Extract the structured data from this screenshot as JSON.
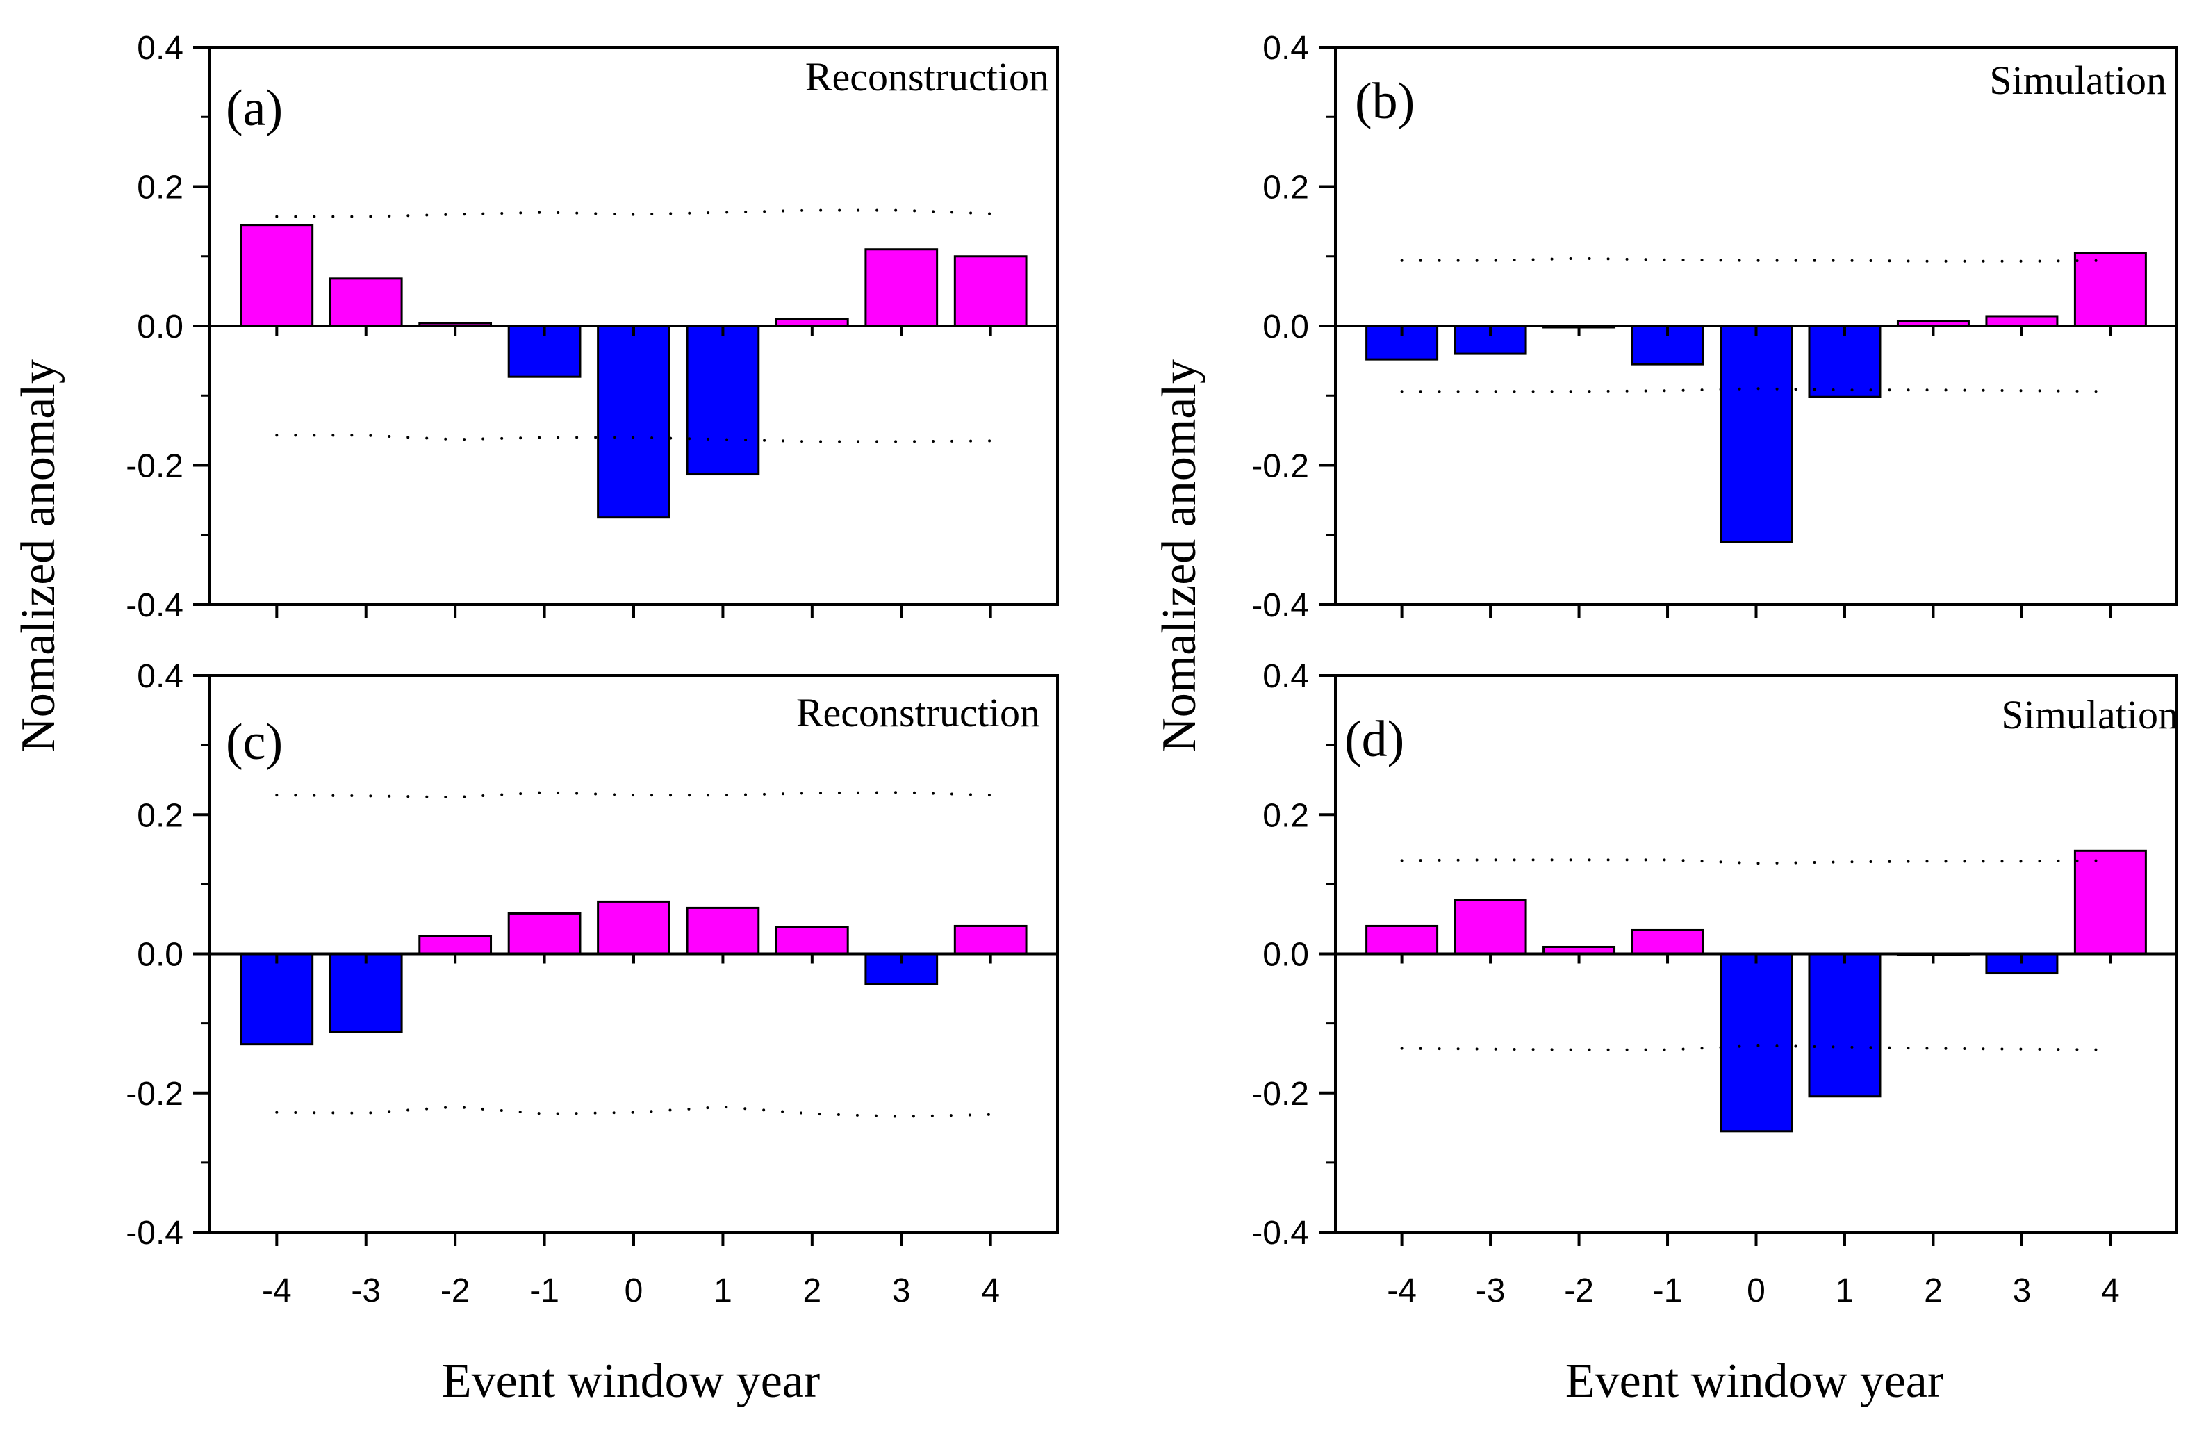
{
  "figure": {
    "ylabel": "Nomalized anomaly",
    "xlabel": "Event window year"
  },
  "chart_data": [
    {
      "type": "bar",
      "panel_label": "(a)",
      "caption": "Reconstruction",
      "categories": [
        "-4",
        "-3",
        "-2",
        "-1",
        "0",
        "1",
        "2",
        "3",
        "4"
      ],
      "values": [
        0.145,
        0.068,
        0.004,
        -0.073,
        -0.275,
        -0.213,
        0.01,
        0.11,
        0.1
      ],
      "upper_bound": [
        0.157,
        0.157,
        0.16,
        0.163,
        0.16,
        0.163,
        0.166,
        0.166,
        0.161
      ],
      "lower_bound": [
        -0.157,
        -0.157,
        -0.163,
        -0.16,
        -0.16,
        -0.163,
        -0.166,
        -0.166,
        -0.165
      ],
      "ylim": [
        -0.4,
        0.4
      ],
      "yticks": [
        "0.4",
        "0.2",
        "0.0",
        "-0.2",
        "-0.4"
      ],
      "colors": {
        "positive": "#ff00ff",
        "negative": "#0000ff"
      }
    },
    {
      "type": "bar",
      "panel_label": "(b)",
      "caption": "Simulation",
      "categories": [
        "-4",
        "-3",
        "-2",
        "-1",
        "0",
        "1",
        "2",
        "3",
        "4"
      ],
      "values": [
        -0.048,
        -0.04,
        -0.002,
        -0.055,
        -0.31,
        -0.102,
        0.007,
        0.014,
        0.105
      ],
      "upper_bound": [
        0.094,
        0.094,
        0.097,
        0.095,
        0.094,
        0.094,
        0.093,
        0.093,
        0.094
      ],
      "lower_bound": [
        -0.094,
        -0.094,
        -0.094,
        -0.093,
        -0.09,
        -0.092,
        -0.092,
        -0.093,
        -0.094
      ],
      "ylim": [
        -0.4,
        0.4
      ],
      "yticks": [
        "0.4",
        "0.2",
        "0.0",
        "-0.2",
        "-0.4"
      ],
      "colors": {
        "positive": "#ff00ff",
        "negative": "#0000ff"
      }
    },
    {
      "type": "bar",
      "panel_label": "(c)",
      "caption": "Reconstruction",
      "categories": [
        "-4",
        "-3",
        "-2",
        "-1",
        "0",
        "1",
        "2",
        "3",
        "4"
      ],
      "values": [
        -0.13,
        -0.112,
        0.025,
        0.058,
        0.075,
        0.066,
        0.038,
        -0.043,
        0.04
      ],
      "upper_bound": [
        0.228,
        0.227,
        0.225,
        0.232,
        0.228,
        0.228,
        0.231,
        0.232,
        0.228
      ],
      "lower_bound": [
        -0.228,
        -0.229,
        -0.22,
        -0.23,
        -0.228,
        -0.22,
        -0.23,
        -0.234,
        -0.231
      ],
      "ylim": [
        -0.4,
        0.4
      ],
      "yticks": [
        "0.4",
        "0.2",
        "0.0",
        "-0.2",
        "-0.4"
      ],
      "colors": {
        "positive": "#ff00ff",
        "negative": "#0000ff"
      }
    },
    {
      "type": "bar",
      "panel_label": "(d)",
      "caption": "Simulation",
      "categories": [
        "-4",
        "-3",
        "-2",
        "-1",
        "0",
        "1",
        "2",
        "3",
        "4"
      ],
      "values": [
        0.04,
        0.077,
        0.01,
        0.034,
        -0.255,
        -0.205,
        -0.002,
        -0.028,
        0.148
      ],
      "upper_bound": [
        0.134,
        0.135,
        0.135,
        0.135,
        0.13,
        0.132,
        0.133,
        0.133,
        0.134
      ],
      "lower_bound": [
        -0.136,
        -0.137,
        -0.138,
        -0.138,
        -0.132,
        -0.134,
        -0.136,
        -0.137,
        -0.138
      ],
      "ylim": [
        -0.4,
        0.4
      ],
      "yticks": [
        "0.4",
        "0.2",
        "0.0",
        "-0.2",
        "-0.4"
      ],
      "colors": {
        "positive": "#ff00ff",
        "negative": "#0000ff"
      }
    }
  ]
}
